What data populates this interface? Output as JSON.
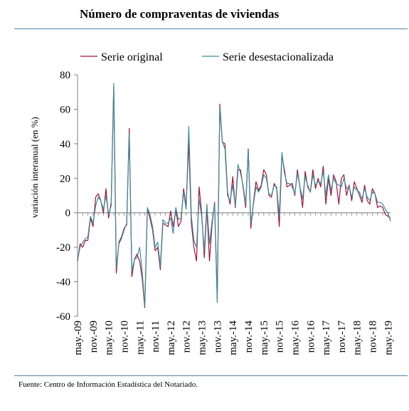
{
  "title": "Número de compraventas de viviendas",
  "source": "Fuente: Centro de Información Estadística del Notariado.",
  "chart_data": {
    "type": "line",
    "title": "Número de compraventas de viviendas",
    "xlabel": "",
    "ylabel": "variación interanual (en %)",
    "ylim": [
      -60,
      80
    ],
    "yticks": [
      -60,
      -40,
      -20,
      0,
      20,
      40,
      60,
      80
    ],
    "x_tick_labels": [
      "may.-09",
      "nov.-09",
      "may.-10",
      "nov.-10",
      "may.-11",
      "nov.-11",
      "may.-12",
      "nov.-12",
      "may.-13",
      "nov.-13",
      "may.-14",
      "nov.-14",
      "may.-15",
      "nov.-15",
      "may.-16",
      "nov.-16",
      "may.-17",
      "nov.-17",
      "may.-18",
      "nov.-18",
      "may.-19"
    ],
    "grid": false,
    "legend_position": "top",
    "colors": {
      "original": "#a0163a",
      "desestacionalizada": "#3d8b9a",
      "axis": "#7f7f7f"
    },
    "series": [
      {
        "name": "Serie original",
        "values": [
          -28,
          -18,
          -20,
          -16,
          -16,
          -3,
          -8,
          9,
          11,
          7,
          0,
          14,
          -3,
          6,
          73,
          -35,
          -17,
          -14,
          -9,
          -7,
          49,
          -37,
          -27,
          -24,
          -28,
          -38,
          -55,
          2,
          -3,
          -10,
          -22,
          -20,
          -33,
          -6,
          -7,
          -8,
          1,
          -8,
          2,
          -8,
          -5,
          14,
          4,
          41,
          -6,
          -20,
          -28,
          15,
          0,
          -26,
          3,
          -28,
          -7,
          6,
          -50,
          63,
          41,
          40,
          12,
          5,
          21,
          3,
          25,
          25,
          15,
          3,
          37,
          -9,
          6,
          18,
          13,
          16,
          25,
          22,
          10,
          9,
          17,
          14,
          -8,
          33,
          25,
          15,
          16,
          17,
          10,
          25,
          15,
          3,
          24,
          15,
          12,
          25,
          14,
          20,
          15,
          27,
          5,
          20,
          10,
          22,
          18,
          5,
          20,
          22,
          10,
          16,
          7,
          18,
          14,
          10,
          6,
          16,
          7,
          5,
          14,
          11,
          3,
          4,
          3,
          -1,
          -2,
          -3
        ]
      },
      {
        "name": "Serie desestacionalizada",
        "values": [
          -27,
          -20,
          -17,
          -15,
          -14,
          -2,
          -6,
          4,
          9,
          7,
          2,
          10,
          -1,
          4,
          75,
          -32,
          -18,
          -15,
          -10,
          -6,
          46,
          -34,
          -27,
          -26,
          -20,
          -34,
          -54,
          3,
          -1,
          -8,
          -20,
          -17,
          -31,
          -4,
          -6,
          -6,
          -3,
          -12,
          3,
          -4,
          -3,
          12,
          2,
          50,
          -2,
          -16,
          -20,
          8,
          -2,
          -22,
          5,
          -18,
          -5,
          5,
          -52,
          61,
          41,
          37,
          10,
          7,
          16,
          4,
          28,
          23,
          16,
          5,
          36,
          -6,
          5,
          15,
          12,
          15,
          22,
          20,
          11,
          10,
          16,
          15,
          -2,
          35,
          23,
          17,
          17,
          15,
          11,
          23,
          15,
          8,
          21,
          16,
          12,
          22,
          16,
          18,
          17,
          24,
          10,
          22,
          13,
          20,
          17,
          16,
          15,
          20,
          14,
          15,
          9,
          15,
          13,
          12,
          8,
          14,
          9,
          7,
          12,
          11,
          6,
          6,
          5,
          2,
          0,
          -5
        ]
      }
    ]
  }
}
